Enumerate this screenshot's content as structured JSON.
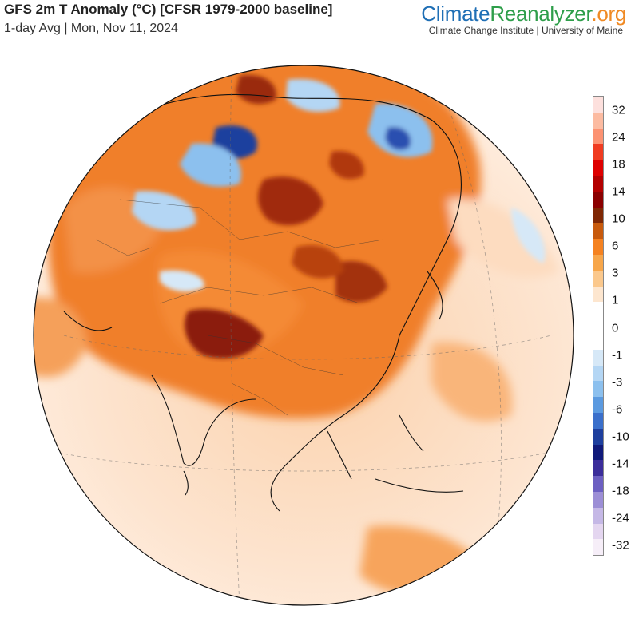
{
  "header": {
    "title": "GFS 2m T Anomaly (°C) [CFSR 1979-2000 baseline]",
    "subtitle": "1-day Avg | Mon, Nov 11, 2024"
  },
  "brand": {
    "part1": "Climate",
    "part2": "Reanalyzer",
    "part3": ".org",
    "tagline": "Climate Change Institute | University of Maine"
  },
  "legend": {
    "labels": [
      "32",
      "24",
      "18",
      "14",
      "10",
      "6",
      "3",
      "1",
      "0",
      "-1",
      "-3",
      "-6",
      "-10",
      "-14",
      "-18",
      "-24",
      "-32"
    ],
    "colors": [
      "#fde0dd",
      "#fcbba1",
      "#fc9272",
      "#f03b20",
      "#de0000",
      "#b30000",
      "#8b0000",
      "#7f2704",
      "#c85a0c",
      "#f58220",
      "#f7a64a",
      "#fbc88c",
      "#fde6cf",
      "#ffffff",
      "#ffffff",
      "#ffffff",
      "#d6e8f7",
      "#b4d6f4",
      "#8cc0ee",
      "#5b9ae0",
      "#3a6fcb",
      "#1e3f9e",
      "#101a7a",
      "#3b2d9b",
      "#6c5fc2",
      "#9c8ed6",
      "#c5b8e6",
      "#e4d6f0",
      "#f6eef8"
    ],
    "color_semantics": "warm anomalies red/orange, cold anomalies blue/purple"
  },
  "map": {
    "projection": "orthographic globe centered on Asia",
    "dominant_anomaly": "warm over Asia, cold over Siberia and the Kara Sea"
  }
}
